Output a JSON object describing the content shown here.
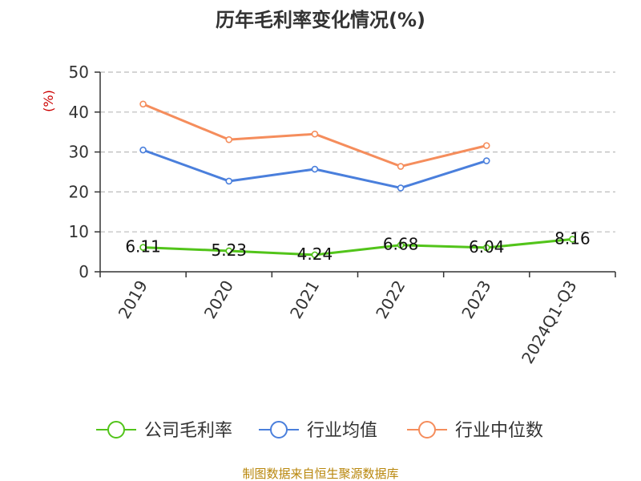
{
  "title": "历年毛利率变化情况(%)",
  "source_note": "制图数据来自恒生聚源数据库",
  "chart_data": {
    "type": "line",
    "title": "历年毛利率变化情况(%)",
    "xlabel": "",
    "ylabel": "(%)",
    "ylim": [
      0,
      50
    ],
    "yticks": [
      0,
      10,
      20,
      30,
      40,
      50
    ],
    "categories": [
      "2019",
      "2020",
      "2021",
      "2022",
      "2023",
      "2024Q1-Q3"
    ],
    "grid": true,
    "legend_position": "bottom",
    "series": [
      {
        "name": "公司毛利率",
        "color": "#52c41a",
        "values": [
          6.11,
          5.23,
          4.24,
          6.68,
          6.04,
          8.16
        ],
        "data_labels": [
          "6.11",
          "5.23",
          "4.24",
          "6.68",
          "6.04",
          "8.16"
        ]
      },
      {
        "name": "行业均值",
        "color": "#4a7fdc",
        "values": [
          30.5,
          22.7,
          25.7,
          21.0,
          27.8,
          null
        ]
      },
      {
        "name": "行业中位数",
        "color": "#f58d5c",
        "values": [
          42.0,
          33.1,
          34.5,
          26.4,
          31.6,
          null
        ]
      }
    ]
  }
}
